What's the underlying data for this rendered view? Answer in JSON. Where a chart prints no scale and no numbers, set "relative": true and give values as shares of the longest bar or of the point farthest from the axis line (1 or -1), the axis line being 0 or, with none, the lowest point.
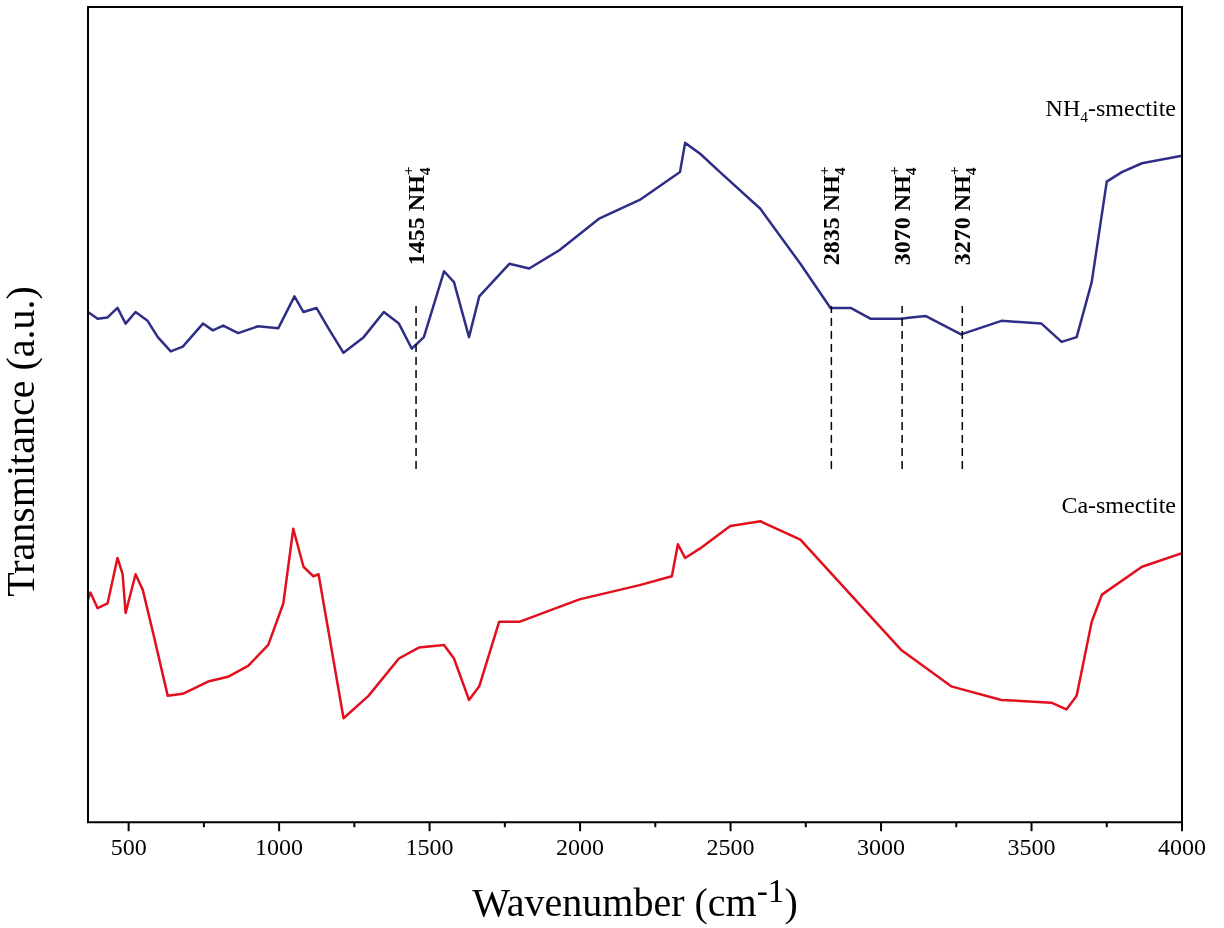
{
  "chart_data": {
    "type": "line",
    "xlabel": "Wavenumber (cm$^{-1}$)",
    "ylabel": "Transmitance (a.u.)",
    "relative": true,
    "marker": "none",
    "line_style": "solid",
    "xlim": [
      365,
      4000
    ],
    "xticks": [
      500,
      {
        "value": 750,
        "label": null
      },
      1000,
      {
        "value": 1250,
        "label": null
      },
      1500,
      {
        "value": 1750,
        "label": null
      },
      2000,
      {
        "value": 2250,
        "label": null
      },
      2500,
      {
        "value": 2750,
        "label": null
      },
      3000,
      {
        "value": 3250,
        "label": null
      },
      3500,
      {
        "value": 3750,
        "label": null
      },
      4000
    ],
    "series": [
      {
        "name": "NH$_{4}$-smectite",
        "color": "#2e2e86",
        "x": [
          365,
          397,
          430,
          463,
          490,
          523,
          563,
          597,
          640,
          680,
          747,
          780,
          814,
          864,
          930,
          997,
          1051,
          1081,
          1124,
          1164,
          1214,
          1281,
          1348,
          1398,
          1441,
          1481,
          1548,
          1581,
          1631,
          1665,
          1765,
          1831,
          1931,
          2065,
          2198,
          2332,
          2349,
          2399,
          2465,
          2599,
          2732,
          2832,
          2899,
          2966,
          3066,
          3099,
          3149,
          3266,
          3400,
          3533,
          3600,
          3650,
          3700,
          3750,
          3800,
          3867,
          4000
        ],
        "values": [
          0.751,
          0.741,
          0.743,
          0.757,
          0.734,
          0.751,
          0.738,
          0.714,
          0.693,
          0.7,
          0.734,
          0.724,
          0.731,
          0.72,
          0.73,
          0.727,
          0.774,
          0.751,
          0.757,
          0.727,
          0.691,
          0.714,
          0.751,
          0.734,
          0.697,
          0.714,
          0.811,
          0.795,
          0.714,
          0.774,
          0.822,
          0.815,
          0.842,
          0.889,
          0.916,
          0.957,
          1,
          0.984,
          0.957,
          0.903,
          0.822,
          0.757,
          0.757,
          0.741,
          0.741,
          0.743,
          0.745,
          0.718,
          0.738,
          0.734,
          0.707,
          0.714,
          0.795,
          0.943,
          0.957,
          0.97,
          0.981
        ]
      },
      {
        "name": "Ca-smectite",
        "color": "#e0101e",
        "x": [
          365,
          373,
          397,
          430,
          463,
          480,
          490,
          523,
          547,
          580,
          630,
          680,
          764,
          830,
          897,
          964,
          1014,
          1047,
          1081,
          1114,
          1131,
          1164,
          1214,
          1297,
          1398,
          1464,
          1548,
          1581,
          1631,
          1665,
          1731,
          1798,
          1998,
          2198,
          2305,
          2325,
          2349,
          2399,
          2499,
          2599,
          2732,
          2899,
          3066,
          3233,
          3400,
          3566,
          3616,
          3650,
          3700,
          3734,
          3867,
          4000
        ],
        "values": [
          0.328,
          0.338,
          0.315,
          0.322,
          0.389,
          0.365,
          0.308,
          0.365,
          0.342,
          0.281,
          0.186,
          0.189,
          0.207,
          0.214,
          0.23,
          0.261,
          0.322,
          0.432,
          0.376,
          0.362,
          0.365,
          0.281,
          0.153,
          0.186,
          0.241,
          0.257,
          0.261,
          0.241,
          0.18,
          0.2,
          0.295,
          0.295,
          0.328,
          0.349,
          0.362,
          0.409,
          0.389,
          0.403,
          0.436,
          0.443,
          0.416,
          0.335,
          0.254,
          0.2,
          0.18,
          0.176,
          0.166,
          0.186,
          0.295,
          0.335,
          0.376,
          0.396
        ]
      }
    ],
    "ref_lines": [
      {
        "axis": "x",
        "value": 1455,
        "label": "1455 NH$_{4}$$^{+}$",
        "line_style": "dashed",
        "color": "#000000"
      },
      {
        "axis": "x",
        "value": 2835,
        "label": "2835 NH$_{4}$$^{+}$",
        "line_style": "dashed",
        "color": "#000000"
      },
      {
        "axis": "x",
        "value": 3070,
        "label": "3070 NH$_{4}$$^{+}$",
        "line_style": "dashed",
        "color": "#000000"
      },
      {
        "axis": "x",
        "value": 3270,
        "label": "3270 NH$_{4}$$^{+}$",
        "line_style": "dashed",
        "color": "#000000"
      }
    ]
  }
}
